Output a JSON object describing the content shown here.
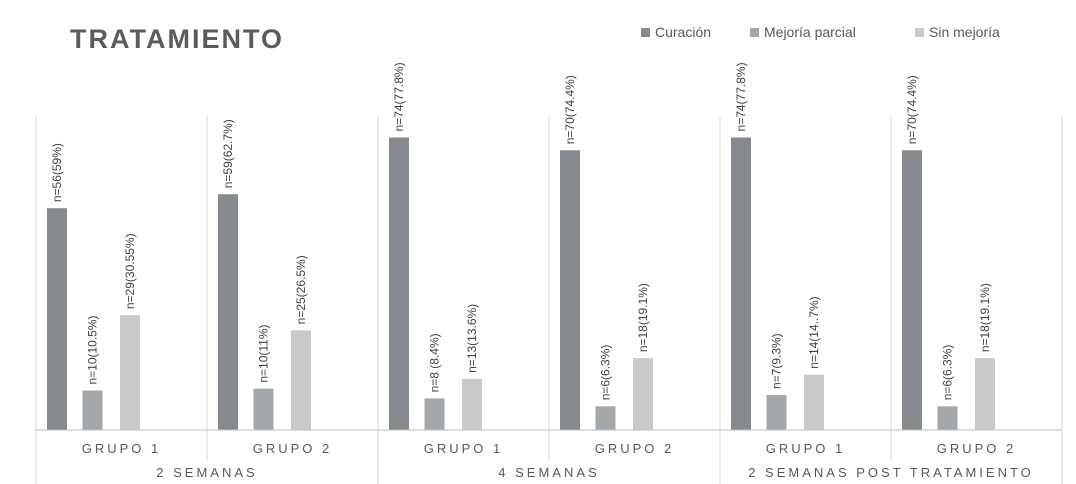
{
  "chart_data": {
    "type": "bar",
    "title": "TRATAMIENTO",
    "series": [
      {
        "name": "Curación",
        "color": "#868a8e",
        "values": [
          59,
          62.7,
          77.8,
          74.4,
          77.8,
          74.4
        ],
        "labels": [
          "n=56(59%)",
          "n=59(62.7%)",
          "n=74(77.8%)",
          "n=70(74.4%)",
          "n=74(77.8%)",
          "n=70(74.4%)"
        ]
      },
      {
        "name": "Mejoría parcial",
        "color": "#a4a7aa",
        "values": [
          10.5,
          11,
          8.4,
          6.3,
          9.3,
          6.3
        ],
        "labels": [
          "n=10(10.5%)",
          "n=10(11%)",
          "n=8 (8.4%)",
          "n=6(6.3%)",
          "n=7(9.3%)",
          "n=6(6.3%)"
        ]
      },
      {
        "name": "Sin mejoría",
        "color": "#c8c9ca",
        "values": [
          30.55,
          26.5,
          13.6,
          19.1,
          14.7,
          19.1
        ],
        "labels": [
          "n=29(30.55%)",
          "n=25(26.5%)",
          "n=13(13.6%)",
          "n=18(19.1%)",
          "n=14(14..7%)",
          "n=18(19.1%)"
        ]
      }
    ],
    "categories": [
      "GRUPO 1",
      "GRUPO 2",
      "GRUPO 1",
      "GRUPO 2",
      "GRUPO 1",
      "GRUPO 2"
    ],
    "groups": [
      {
        "label": "2 SEMANAS",
        "span": 2
      },
      {
        "label": "4 SEMANAS",
        "span": 2
      },
      {
        "label": "2 SEMANAS POST TRATAMIENTO",
        "span": 2
      }
    ],
    "ylim": [
      0,
      100
    ],
    "grid": false,
    "legend_position": "top-right"
  }
}
